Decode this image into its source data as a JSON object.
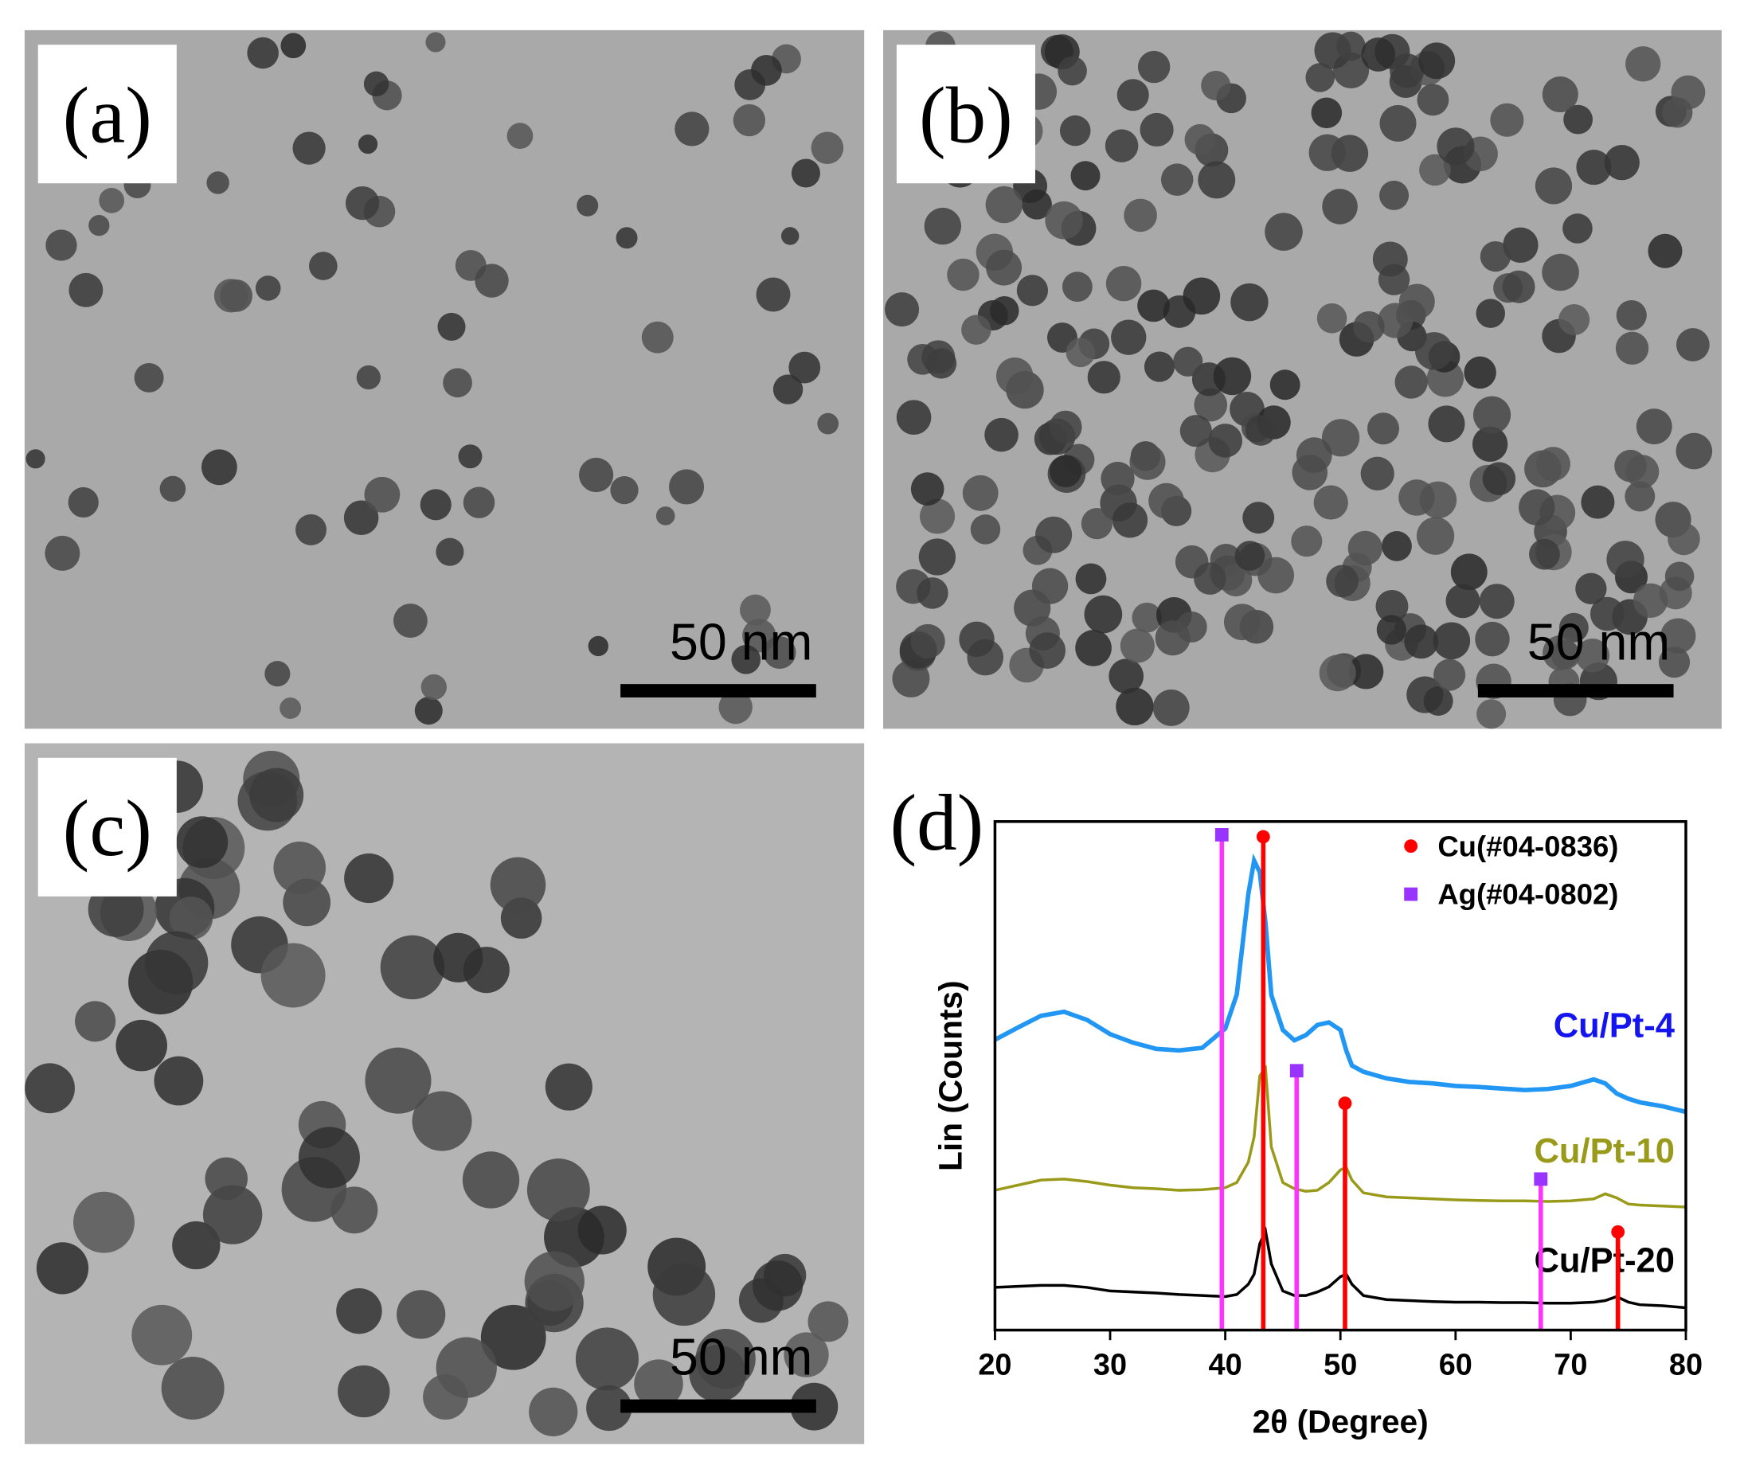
{
  "panels": [
    {
      "label": "(a)",
      "scale_bar": "50 nm"
    },
    {
      "label": "(b)",
      "scale_bar": "50 nm"
    },
    {
      "label": "(c)",
      "scale_bar": "50 nm"
    }
  ],
  "chart_data": {
    "type": "line",
    "panel_label": "(d)",
    "xlabel": "2θ (Degree)",
    "ylabel": "Lin (Counts)",
    "xlim": [
      20,
      80
    ],
    "xticks": [
      20,
      30,
      40,
      50,
      60,
      70,
      80
    ],
    "ylim": [
      0,
      100
    ],
    "x": [
      20,
      22,
      24,
      26,
      28,
      30,
      32,
      34,
      36,
      38,
      40,
      41,
      42,
      42.5,
      43,
      43.5,
      44,
      45,
      46,
      47,
      48,
      49,
      50,
      50.5,
      51,
      52,
      54,
      56,
      58,
      60,
      62,
      64,
      66,
      68,
      70,
      72,
      73,
      74,
      75,
      76,
      78,
      80
    ],
    "series": [
      {
        "name": "Cu/Pt-4",
        "color": "#2196f3",
        "label_color": "#1414f0",
        "values": [
          57.1,
          59.5,
          61.8,
          62.6,
          61,
          58.2,
          56.5,
          55.3,
          55,
          55.5,
          59.3,
          66,
          85.7,
          92.3,
          90,
          80,
          65.9,
          59,
          57,
          58,
          60,
          60.5,
          59,
          55,
          52,
          50.8,
          49.5,
          48.8,
          48.5,
          48,
          47.8,
          47.5,
          47.2,
          47.4,
          48,
          49.3,
          48.5,
          46.5,
          45.5,
          44.8,
          44,
          42.9
        ]
      },
      {
        "name": "Cu/Pt-10",
        "color": "#9a9a1a",
        "label_color": "#9a9a1a",
        "values": [
          27.5,
          28.5,
          29.5,
          29.7,
          29.2,
          28.5,
          28,
          27.8,
          27.5,
          27.6,
          28,
          29,
          33,
          38,
          50,
          51.5,
          36,
          29,
          27.8,
          27.3,
          27.5,
          29,
          31.5,
          32,
          29.5,
          27,
          26.2,
          26,
          25.8,
          25.6,
          25.5,
          25.4,
          25.4,
          25.3,
          25.4,
          25.8,
          26.8,
          26,
          24.8,
          24.6,
          24.4,
          24.2
        ]
      },
      {
        "name": "Cu/Pt-20",
        "color": "#000000",
        "label_color": "#000000",
        "values": [
          8.4,
          8.6,
          8.8,
          8.8,
          8.4,
          7.7,
          7.5,
          7.3,
          7,
          6.8,
          6.6,
          7,
          9,
          11,
          17,
          19.5,
          13,
          7.7,
          6.8,
          6.8,
          7.5,
          8.5,
          10.5,
          11,
          9,
          6.8,
          6,
          5.8,
          5.6,
          5.5,
          5.5,
          5.4,
          5.4,
          5.3,
          5.3,
          5.5,
          5.8,
          6.6,
          5.5,
          5,
          4.8,
          4.4
        ]
      }
    ],
    "references": [
      {
        "name": "Cu(#04-0836)",
        "color": "#ff0000",
        "marker_color": "#ff0000",
        "marker": "circle",
        "x": [
          43.3,
          50.4,
          74.1
        ],
        "values": [
          97,
          44.6,
          19.3
        ]
      },
      {
        "name": "Ag(#04-0802)",
        "color": "#ff33ff",
        "marker_color": "#9933ff",
        "marker": "square",
        "x": [
          39.7,
          46.2,
          67.4
        ],
        "values": [
          97.4,
          51,
          29.7
        ]
      }
    ],
    "legend": "top-right"
  }
}
